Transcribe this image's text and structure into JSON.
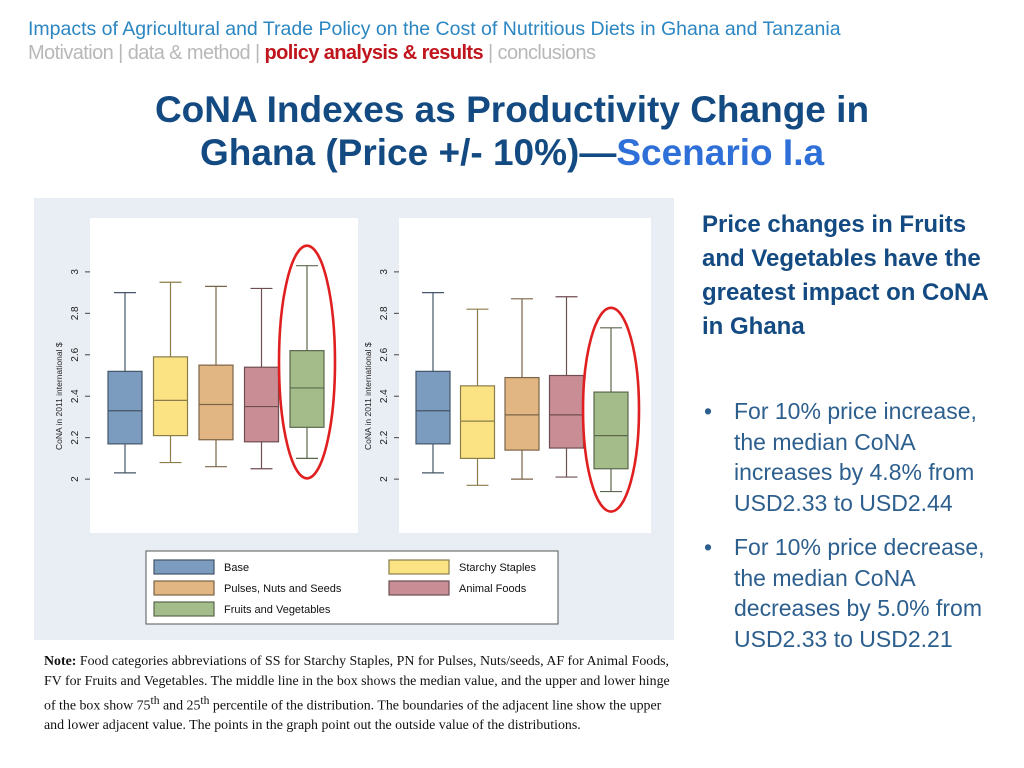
{
  "header": {
    "title": "Impacts of Agricultural and Trade Policy on the Cost of Nutritious Diets in Ghana and Tanzania",
    "breadcrumbs": [
      {
        "label": "Motivation",
        "active": false
      },
      {
        "label": "data & method",
        "active": false
      },
      {
        "label": "policy analysis & results",
        "active": true
      },
      {
        "label": "conclusions",
        "active": false
      }
    ],
    "separator": "|"
  },
  "slide": {
    "title_line1": "CoNA Indexes as Productivity Change in",
    "title_line2": "Ghana (Price +/- 10%)—",
    "title_highlight": "Scenario I.a"
  },
  "right_panel": {
    "heading": "Price changes in Fruits and Vegetables have the greatest impact on CoNA in Ghana",
    "bullets": [
      "For 10% price increase, the median CoNA increases by 4.8% from USD2.33 to USD2.44",
      "For 10% price decrease, the median CoNA decreases by 5.0% from USD2.33 to USD2.21"
    ]
  },
  "note": {
    "label": "Note:",
    "part1": " Food categories abbreviations of SS for Starchy Staples, PN for Pulses, Nuts/seeds, AF for Animal Foods, FV for Fruits and Vegetables. The middle line in the box shows the median value, and the upper and lower hinge of the box show 75",
    "sup1": "th",
    "part2": " and 25",
    "sup2": "th",
    "part3": " percentile of the distribution. The boundaries of the adjacent line show the upper and lower adjacent value. The points in the graph point out the outside value of the distributions."
  },
  "colors": {
    "Base": "#7b9bbf",
    "Starchy Staples": "#fbe384",
    "Pulses, Nuts and Seeds": "#e1b682",
    "Animal Foods": "#c98e95",
    "Fruits and Vegetables": "#a4bc8a",
    "highlight": "#e02020"
  },
  "chart_data": [
    {
      "type": "box",
      "ylabel": "CoNA in 2011 international $",
      "yticks": [
        2,
        2.2,
        2.4,
        2.6,
        2.8,
        3
      ],
      "ylim": [
        1.74,
        3.26
      ],
      "series": [
        {
          "name": "Base",
          "whisker_low": 2.03,
          "q1": 2.17,
          "median": 2.33,
          "q3": 2.52,
          "whisker_high": 2.9
        },
        {
          "name": "Starchy Staples",
          "whisker_low": 2.08,
          "q1": 2.21,
          "median": 2.38,
          "q3": 2.59,
          "whisker_high": 2.95
        },
        {
          "name": "Pulses, Nuts and Seeds",
          "whisker_low": 2.06,
          "q1": 2.19,
          "median": 2.36,
          "q3": 2.55,
          "whisker_high": 2.93
        },
        {
          "name": "Animal Foods",
          "whisker_low": 2.05,
          "q1": 2.18,
          "median": 2.35,
          "q3": 2.54,
          "whisker_high": 2.92
        },
        {
          "name": "Fruits and Vegetables",
          "whisker_low": 2.1,
          "q1": 2.25,
          "median": 2.44,
          "q3": 2.62,
          "whisker_high": 3.03
        }
      ],
      "highlight": "Fruits and Vegetables"
    },
    {
      "type": "box",
      "ylabel": "CoNA in 2011 international $",
      "yticks": [
        2,
        2.2,
        2.4,
        2.6,
        2.8,
        3
      ],
      "ylim": [
        1.74,
        3.26
      ],
      "series": [
        {
          "name": "Base",
          "whisker_low": 2.03,
          "q1": 2.17,
          "median": 2.33,
          "q3": 2.52,
          "whisker_high": 2.9
        },
        {
          "name": "Starchy Staples",
          "whisker_low": 1.97,
          "q1": 2.1,
          "median": 2.28,
          "q3": 2.45,
          "whisker_high": 2.82
        },
        {
          "name": "Pulses, Nuts and Seeds",
          "whisker_low": 2.0,
          "q1": 2.14,
          "median": 2.31,
          "q3": 2.49,
          "whisker_high": 2.87
        },
        {
          "name": "Animal Foods",
          "whisker_low": 2.01,
          "q1": 2.15,
          "median": 2.31,
          "q3": 2.5,
          "whisker_high": 2.88
        },
        {
          "name": "Fruits and Vegetables",
          "whisker_low": 1.94,
          "q1": 2.05,
          "median": 2.21,
          "q3": 2.42,
          "whisker_high": 2.73
        }
      ],
      "highlight": "Fruits and Vegetables"
    }
  ],
  "legend": {
    "placement": "bottom",
    "items": [
      "Base",
      "Starchy Staples",
      "Pulses, Nuts and Seeds",
      "Animal Foods",
      "Fruits and Vegetables"
    ]
  }
}
